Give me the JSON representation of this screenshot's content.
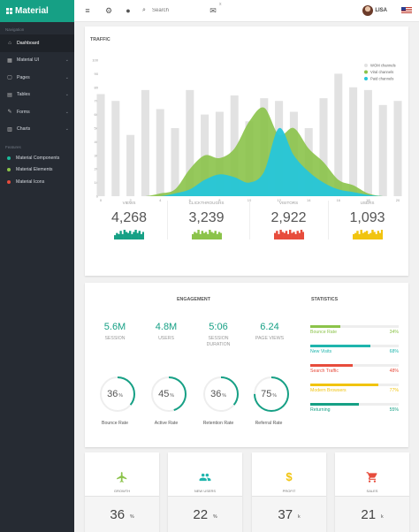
{
  "brand": {
    "name": "Material"
  },
  "topbar": {
    "search_placeholder": "Search",
    "user_name": "LISA",
    "small_mark": "x"
  },
  "sidebar": {
    "nav_heading": "Navigation",
    "nav_items": [
      {
        "label": "Dashboard",
        "icon": "home-icon"
      },
      {
        "label": "Material UI",
        "icon": "calendar-icon"
      },
      {
        "label": "Pages",
        "icon": "pages-icon"
      },
      {
        "label": "Tables",
        "icon": "grid-icon"
      },
      {
        "label": "Forms",
        "icon": "pencil-icon"
      },
      {
        "label": "Charts",
        "icon": "chart-icon"
      }
    ],
    "features_heading": "Features",
    "features": [
      {
        "label": "Material Components",
        "color": "#1abc9c"
      },
      {
        "label": "Material Elements",
        "color": "#8bc34a"
      },
      {
        "label": "Material Icons",
        "color": "#e74c3c"
      }
    ]
  },
  "traffic": {
    "title": "TRAFFIC",
    "chart_data": {
      "type": "area",
      "x": [
        0,
        1,
        2,
        3,
        4,
        5,
        6,
        7,
        8,
        9,
        10,
        11,
        12,
        13,
        14,
        15,
        16,
        17,
        18,
        19,
        20
      ],
      "xticks": [
        0,
        2,
        4,
        6,
        8,
        10,
        12,
        14,
        16,
        18,
        20
      ],
      "yticks": [
        0,
        10,
        20,
        30,
        40,
        50,
        60,
        70,
        80,
        90,
        100
      ],
      "ylim": [
        0,
        100
      ],
      "bars": {
        "name": "WOM channels",
        "color": "#e2e2e2",
        "values": [
          75,
          70,
          45,
          78,
          64,
          50,
          78,
          60,
          62,
          74,
          55,
          72,
          70,
          62,
          50,
          72,
          90,
          80,
          78,
          67,
          70
        ]
      },
      "series": [
        {
          "name": "Viral channels",
          "color": "#8bc34a",
          "values": [
            0,
            0,
            0,
            0,
            2,
            5,
            20,
            30,
            28,
            35,
            55,
            65,
            45,
            50,
            35,
            25,
            12,
            8,
            2,
            0,
            0
          ]
        },
        {
          "name": "Paid channels",
          "color": "#26c6da",
          "values": [
            0,
            0,
            0,
            0,
            0,
            2,
            5,
            12,
            16,
            14,
            10,
            18,
            50,
            30,
            18,
            10,
            5,
            3,
            1,
            0,
            0
          ]
        }
      ]
    },
    "kpis": [
      {
        "label": "VIEWS",
        "value": "4,268",
        "color": "#16a085",
        "spark": [
          4,
          6,
          5,
          8,
          5,
          9,
          7,
          6,
          8,
          5,
          7,
          9,
          6,
          8,
          5,
          7
        ]
      },
      {
        "label": "CLICKTHROUGHS",
        "value": "3,239",
        "color": "#8bc34a",
        "spark": [
          5,
          7,
          6,
          9,
          5,
          8,
          6,
          7,
          5,
          9,
          7,
          6,
          8,
          5,
          7,
          6
        ]
      },
      {
        "label": "VISITORS",
        "value": "2,922",
        "color": "#e74c3c",
        "spark": [
          6,
          8,
          5,
          9,
          7,
          6,
          8,
          5,
          9,
          6,
          7,
          5,
          8,
          6,
          9,
          7
        ]
      },
      {
        "label": "USERS",
        "value": "1,093",
        "color": "#f1c40f",
        "spark": [
          5,
          6,
          8,
          5,
          9,
          6,
          7,
          8,
          5,
          6,
          9,
          7,
          5,
          8,
          6,
          9
        ]
      }
    ]
  },
  "engagement": {
    "title": "ENGAGEMENT",
    "metrics": [
      {
        "value": "5.6M",
        "label": "SESSION"
      },
      {
        "value": "4.8M",
        "label": "USERS"
      },
      {
        "value": "5:06",
        "label": "SESSION DURATION"
      },
      {
        "value": "6.24",
        "label": "PAGE VIEWS"
      }
    ],
    "gauges": [
      {
        "value": 36,
        "unit": "%",
        "label": "Bounce Rate"
      },
      {
        "value": 45,
        "unit": "%",
        "label": "Active Rate"
      },
      {
        "value": 36,
        "unit": "%",
        "label": "Retention Rate"
      },
      {
        "value": 75,
        "unit": "%",
        "label": "Referral Rate"
      }
    ],
    "gauge_color": "#16a085"
  },
  "statistics": {
    "title": "STATISTICS",
    "items": [
      {
        "label": "Bounce Rate",
        "percent": 34,
        "color": "#8bc34a"
      },
      {
        "label": "New Visits",
        "percent": 68,
        "color": "#1fb5ad"
      },
      {
        "label": "Search Traffic",
        "percent": 48,
        "color": "#e74c3c"
      },
      {
        "label": "Modern Browsers",
        "percent": 77,
        "color": "#f1c40f"
      },
      {
        "label": "Returning",
        "percent": 55,
        "color": "#16a085"
      }
    ]
  },
  "tiles": [
    {
      "label": "GROWTH",
      "value": "36",
      "unit": "%",
      "icon": "airplane-icon",
      "color": "#8bc34a"
    },
    {
      "label": "NEW USERS",
      "value": "22",
      "unit": "%",
      "icon": "people-icon",
      "color": "#1fb5ad"
    },
    {
      "label": "PROFIT",
      "value": "37",
      "unit": "k",
      "icon": "dollar-icon",
      "color": "#f1c40f"
    },
    {
      "label": "SALES",
      "value": "21",
      "unit": "k",
      "icon": "cart-icon",
      "color": "#e74c3c"
    }
  ]
}
